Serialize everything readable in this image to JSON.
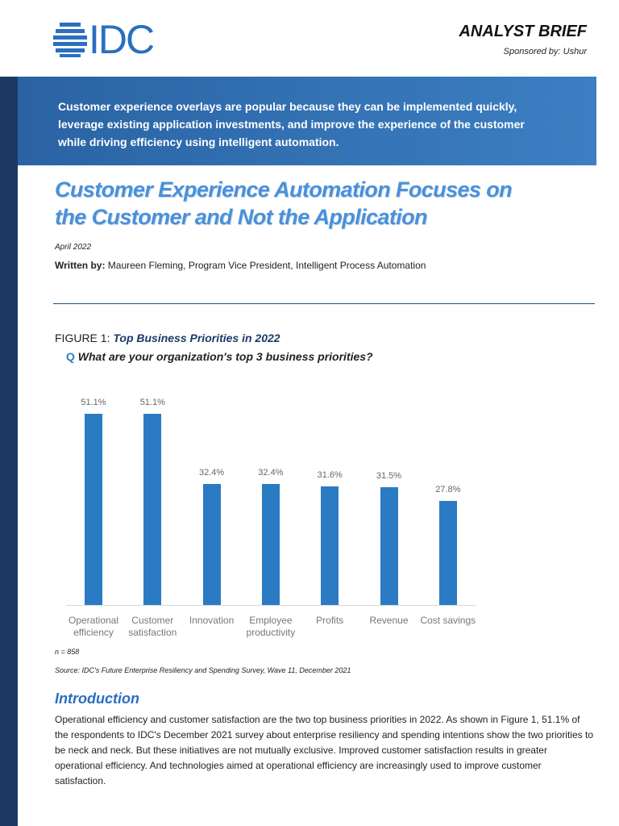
{
  "header": {
    "logo": "IDC",
    "label": "ANALYST BRIEF",
    "sponsor": "Sponsored by: Ushur"
  },
  "banner": [
    "Customer experience overlays are popular because they can be implemented quickly,",
    "leverage existing application investments, and improve the experience of the customer",
    "while driving efficiency using intelligent automation."
  ],
  "title": [
    "Customer Experience Automation Focuses on",
    "the Customer and Not the Application"
  ],
  "date": "April 2022",
  "author": {
    "label": "Written by:",
    "text": "Maureen Fleming, Program Vice President, Intelligent Process Automation"
  },
  "figure": {
    "label": "FIGURE 1:",
    "title": "Top Business Priorities in 2022",
    "q": "Q",
    "question": "What are your organization's top 3 business priorities?",
    "note": "n = 858",
    "source": "Source: IDC's Future Enterprise Resiliency and Spending Survey, Wave 11, December 2021"
  },
  "chart_data": {
    "type": "bar",
    "categories": [
      "Operational efficiency",
      "Customer satisfaction",
      "Innovation",
      "Employee productivity",
      "Profits",
      "Revenue",
      "Cost savings"
    ],
    "values": [
      51.1,
      51.1,
      32.4,
      32.4,
      31.6,
      31.5,
      27.8
    ],
    "value_labels": [
      "51.1%",
      "51.1%",
      "32.4%",
      "32.4%",
      "31.6%",
      "31.5%",
      "27.8%"
    ],
    "color": "#2a7bc4"
  },
  "section": {
    "heading": "Introduction",
    "body": "Operational efficiency and customer satisfaction are the two top business priorities in 2022. As shown in Figure 1, 51.1% of the respondents to IDC's December 2021 survey about enterprise resiliency and spending intentions show the two priorities to be neck and neck. But these initiatives are not mutually exclusive. Improved customer satisfaction results in greater operational efficiency. And technologies aimed at operational efficiency are increasingly used to improve customer satisfaction."
  }
}
